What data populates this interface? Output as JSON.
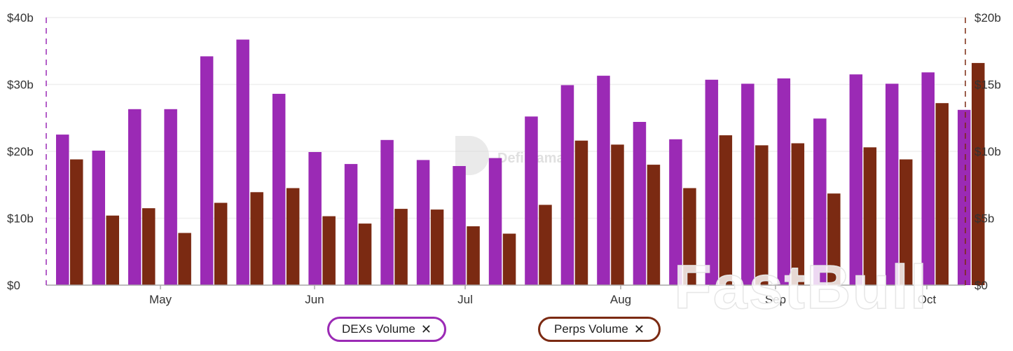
{
  "chart_data": {
    "type": "bar",
    "watermark": "DefiLlama",
    "brand_watermark": "FastBull",
    "x_tick_labels": [
      "May",
      "Jun",
      "Jul",
      "Aug",
      "Sep",
      "Oct"
    ],
    "left_axis": {
      "ticks": [
        "$0",
        "$10b",
        "$20b",
        "$30b",
        "$40b"
      ],
      "range": [
        0,
        40
      ]
    },
    "right_axis": {
      "ticks": [
        "$0",
        "$5b",
        "$10b",
        "$15b",
        "$20b"
      ],
      "range": [
        0,
        20
      ]
    },
    "series": [
      {
        "name": "DEXs Volume",
        "axis": "left",
        "color": "#9b2ab5",
        "values": [
          22.5,
          20.1,
          26.3,
          26.3,
          34.2,
          36.7,
          28.6,
          19.9,
          18.1,
          21.7,
          18.7,
          17.8,
          19.0,
          25.2,
          29.9,
          31.3,
          24.4,
          21.8,
          30.7,
          30.1,
          30.9,
          24.9,
          31.5,
          30.1,
          31.8,
          26.2
        ]
      },
      {
        "name": "Perps Volume",
        "axis": "right",
        "color": "#7b2a12",
        "values": [
          9.4,
          5.2,
          5.75,
          3.9,
          6.15,
          6.95,
          7.25,
          5.15,
          4.6,
          5.7,
          5.65,
          4.4,
          3.85,
          6.0,
          10.8,
          10.5,
          9.0,
          7.25,
          11.2,
          10.45,
          10.6,
          6.85,
          10.3,
          9.4,
          13.6,
          16.6
        ]
      }
    ],
    "legend": [
      "DEXs Volume",
      "Perps Volume"
    ],
    "grid": true
  }
}
